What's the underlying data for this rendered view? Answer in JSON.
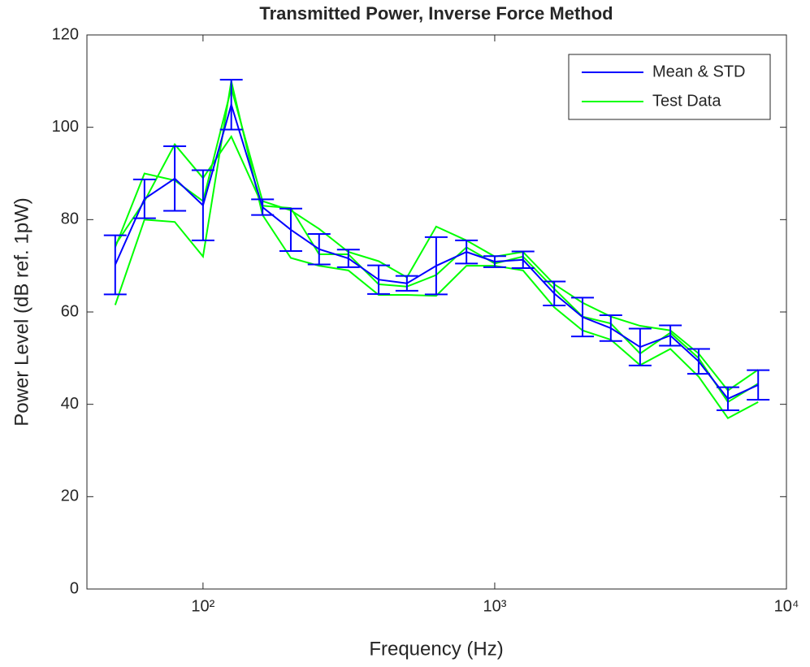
{
  "chart_data": {
    "type": "line",
    "title": "Transmitted Power, Inverse Force Method",
    "xlabel": "Frequency (Hz)",
    "ylabel": "Power Level (dB ref. 1pW)",
    "x": [
      50,
      63,
      80,
      100,
      125,
      160,
      200,
      250,
      315,
      400,
      500,
      630,
      800,
      1000,
      1250,
      1600,
      2000,
      2500,
      3150,
      4000,
      5000,
      6300,
      8000
    ],
    "series": [
      {
        "name": "Mean & STD",
        "color": "#0000ff",
        "values": [
          70.2,
          84.5,
          88.9,
          83.1,
          104.9,
          82.7,
          77.8,
          73.6,
          71.6,
          67.0,
          66.2,
          70.0,
          73.0,
          70.9,
          71.3,
          64.0,
          58.9,
          56.5,
          52.4,
          54.9,
          49.3,
          41.2,
          44.2
        ],
        "errors": [
          6.4,
          4.2,
          7.0,
          7.6,
          5.4,
          1.7,
          4.6,
          3.3,
          1.9,
          3.1,
          1.6,
          6.2,
          2.5,
          1.2,
          1.8,
          2.6,
          4.2,
          2.8,
          4.0,
          2.2,
          2.7,
          2.5,
          3.2
        ]
      },
      {
        "name": "Test Data",
        "color": "#00ff00",
        "values": [
          74,
          90,
          88.5,
          84,
          108.5,
          84,
          82,
          78,
          73,
          71,
          67.5,
          78.5,
          75.5,
          72,
          73,
          66,
          62,
          59,
          57,
          56,
          51,
          43,
          47.5
        ]
      },
      {
        "color": "#00ff00",
        "values": [
          61.5,
          80,
          79.5,
          72,
          110,
          81,
          71.7,
          70,
          69,
          63.7,
          63.7,
          63.5,
          70,
          70,
          69,
          61,
          56,
          54,
          48.5,
          52,
          46,
          37,
          40.5
        ]
      },
      {
        "color": "#00ff00",
        "values": [
          74.5,
          84,
          96.3,
          89,
          98,
          83,
          82.5,
          72.5,
          72.5,
          66,
          65.5,
          68,
          74,
          70.5,
          72,
          65,
          59,
          57.5,
          51,
          55.5,
          50,
          40.5,
          44.5
        ]
      }
    ],
    "xscale": "log",
    "xlim": [
      40,
      10000
    ],
    "xticks": [
      {
        "value": 100,
        "label": "10²"
      },
      {
        "value": 1000,
        "label": "10³"
      },
      {
        "value": 10000,
        "label": "10⁴"
      }
    ],
    "ylim": [
      0,
      120
    ],
    "yticks": [
      0,
      20,
      40,
      60,
      80,
      100,
      120
    ],
    "legend": "upper right"
  }
}
